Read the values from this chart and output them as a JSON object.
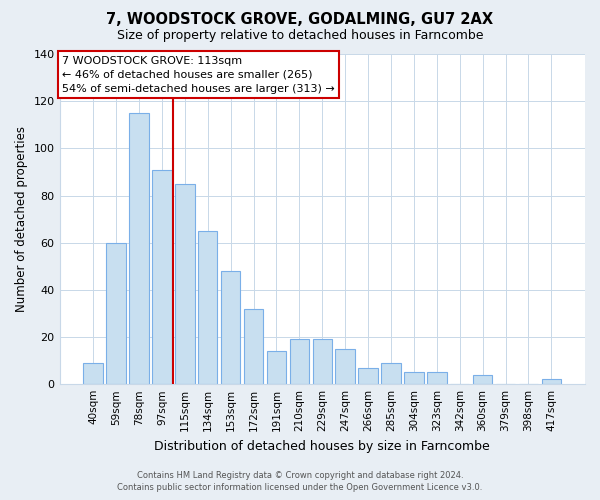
{
  "title": "7, WOODSTOCK GROVE, GODALMING, GU7 2AX",
  "subtitle": "Size of property relative to detached houses in Farncombe",
  "xlabel": "Distribution of detached houses by size in Farncombe",
  "ylabel": "Number of detached properties",
  "bar_labels": [
    "40sqm",
    "59sqm",
    "78sqm",
    "97sqm",
    "115sqm",
    "134sqm",
    "153sqm",
    "172sqm",
    "191sqm",
    "210sqm",
    "229sqm",
    "247sqm",
    "266sqm",
    "285sqm",
    "304sqm",
    "323sqm",
    "342sqm",
    "360sqm",
    "379sqm",
    "398sqm",
    "417sqm"
  ],
  "bar_values": [
    9,
    60,
    115,
    91,
    85,
    65,
    48,
    32,
    14,
    19,
    19,
    15,
    7,
    9,
    5,
    5,
    0,
    4,
    0,
    0,
    2
  ],
  "bar_color": "#c8dff0",
  "bar_edge_color": "#7aafe8",
  "vline_x": 3.5,
  "vline_color": "#cc0000",
  "annotation_line1": "7 WOODSTOCK GROVE: 113sqm",
  "annotation_line2": "← 46% of detached houses are smaller (265)",
  "annotation_line3": "54% of semi-detached houses are larger (313) →",
  "annotation_box_color": "#ffffff",
  "annotation_box_edge_color": "#cc0000",
  "ylim": [
    0,
    140
  ],
  "yticks": [
    0,
    20,
    40,
    60,
    80,
    100,
    120,
    140
  ],
  "footer_line1": "Contains HM Land Registry data © Crown copyright and database right 2024.",
  "footer_line2": "Contains public sector information licensed under the Open Government Licence v3.0.",
  "bg_color": "#e8eef4",
  "plot_bg_color": "#ffffff",
  "grid_color": "#c8d8e8"
}
